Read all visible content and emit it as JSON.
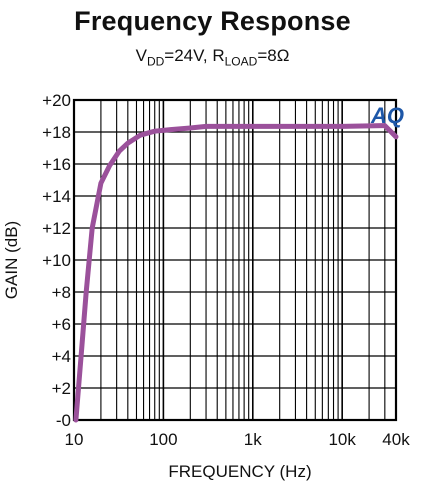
{
  "chart_data": {
    "type": "line",
    "title": "Frequency Response",
    "subtitle": {
      "v_main": "V",
      "v_sub": "DD",
      "v_rest": "=24V, R",
      "r_sub": "LOAD",
      "r_rest": "=8Ω"
    },
    "xlabel": "FREQUENCY (Hz)",
    "ylabel": "GAIN (dB)",
    "x_scale": "log",
    "xlim": [
      10,
      40000
    ],
    "ylim": [
      0,
      20
    ],
    "x_ticks": [
      {
        "value": 10,
        "label": "10"
      },
      {
        "value": 100,
        "label": "100"
      },
      {
        "value": 1000,
        "label": "1k"
      },
      {
        "value": 10000,
        "label": "10k"
      },
      {
        "value": 40000,
        "label": "40k"
      }
    ],
    "y_ticks": [
      {
        "value": 0,
        "label": "-0"
      },
      {
        "value": 2,
        "label": "+2"
      },
      {
        "value": 4,
        "label": "+4"
      },
      {
        "value": 6,
        "label": "+6"
      },
      {
        "value": 8,
        "label": "+8"
      },
      {
        "value": 10,
        "label": "+10"
      },
      {
        "value": 12,
        "label": "+12"
      },
      {
        "value": 14,
        "label": "+14"
      },
      {
        "value": 16,
        "label": "+16"
      },
      {
        "value": 18,
        "label": "+18"
      },
      {
        "value": 20,
        "label": "+20"
      }
    ],
    "grid": true,
    "series": [
      {
        "color": "#9b519b",
        "points": [
          [
            10.5,
            0
          ],
          [
            12,
            4
          ],
          [
            13.7,
            8
          ],
          [
            16,
            12
          ],
          [
            20,
            14.8
          ],
          [
            25,
            15.9
          ],
          [
            32,
            16.8
          ],
          [
            40,
            17.3
          ],
          [
            55,
            17.8
          ],
          [
            80,
            18.05
          ],
          [
            120,
            18.15
          ],
          [
            200,
            18.25
          ],
          [
            300,
            18.35
          ],
          [
            1000,
            18.35
          ],
          [
            10000,
            18.35
          ],
          [
            30000,
            18.4
          ],
          [
            40000,
            17.7
          ]
        ]
      }
    ],
    "logo_text": "AQ",
    "logo_color": "#1d57a8"
  }
}
